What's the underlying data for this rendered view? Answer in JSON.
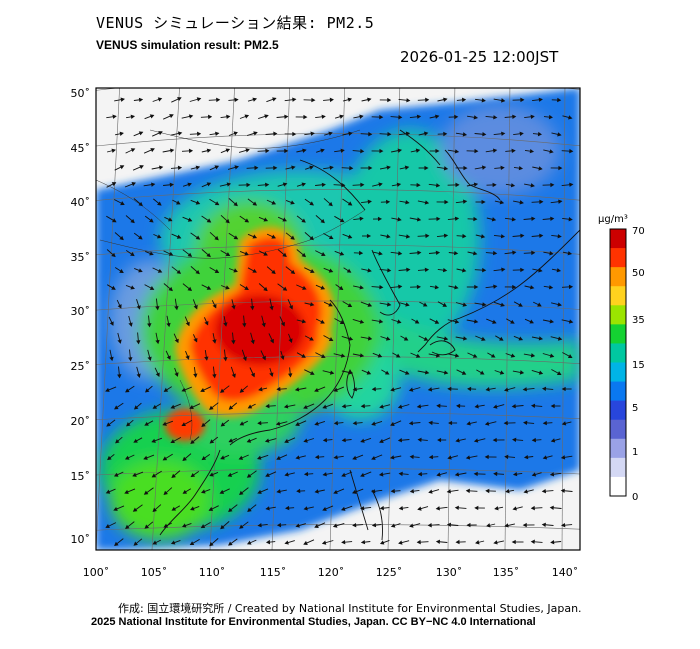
{
  "title_jp": "VENUS シミュレーション結果: PM2.5",
  "title_en": "VENUS simulation result: PM2.5",
  "datetime": "2026-01-25 12:00JST",
  "lat_ticks": [
    "50˚",
    "45˚",
    "40˚",
    "35˚",
    "30˚",
    "25˚",
    "20˚",
    "15˚",
    "10˚"
  ],
  "lon_ticks": [
    "100˚",
    "105˚",
    "110˚",
    "115˚",
    "120˚",
    "125˚",
    "130˚",
    "135˚",
    "140˚"
  ],
  "colorbar": {
    "unit": "μg/m³",
    "labels": [
      "70",
      "50",
      "35",
      "15",
      "5",
      "1",
      "0"
    ],
    "colors": [
      "#cc0000",
      "#ff3300",
      "#ff9900",
      "#ffd21e",
      "#9be400",
      "#14d232",
      "#00c8a0",
      "#00b4e6",
      "#0a78f0",
      "#2846dc",
      "#5a64d2",
      "#9aa2e6",
      "#d4d8f4",
      "#ffffff"
    ]
  },
  "credits": {
    "line1": "作成: 国立環境研究所 / Created by National Institute for Environmental Studies, Japan.",
    "line2": "2025 National Institute for Environmental Studies, Japan. CC BY−NC 4.0 International"
  }
}
